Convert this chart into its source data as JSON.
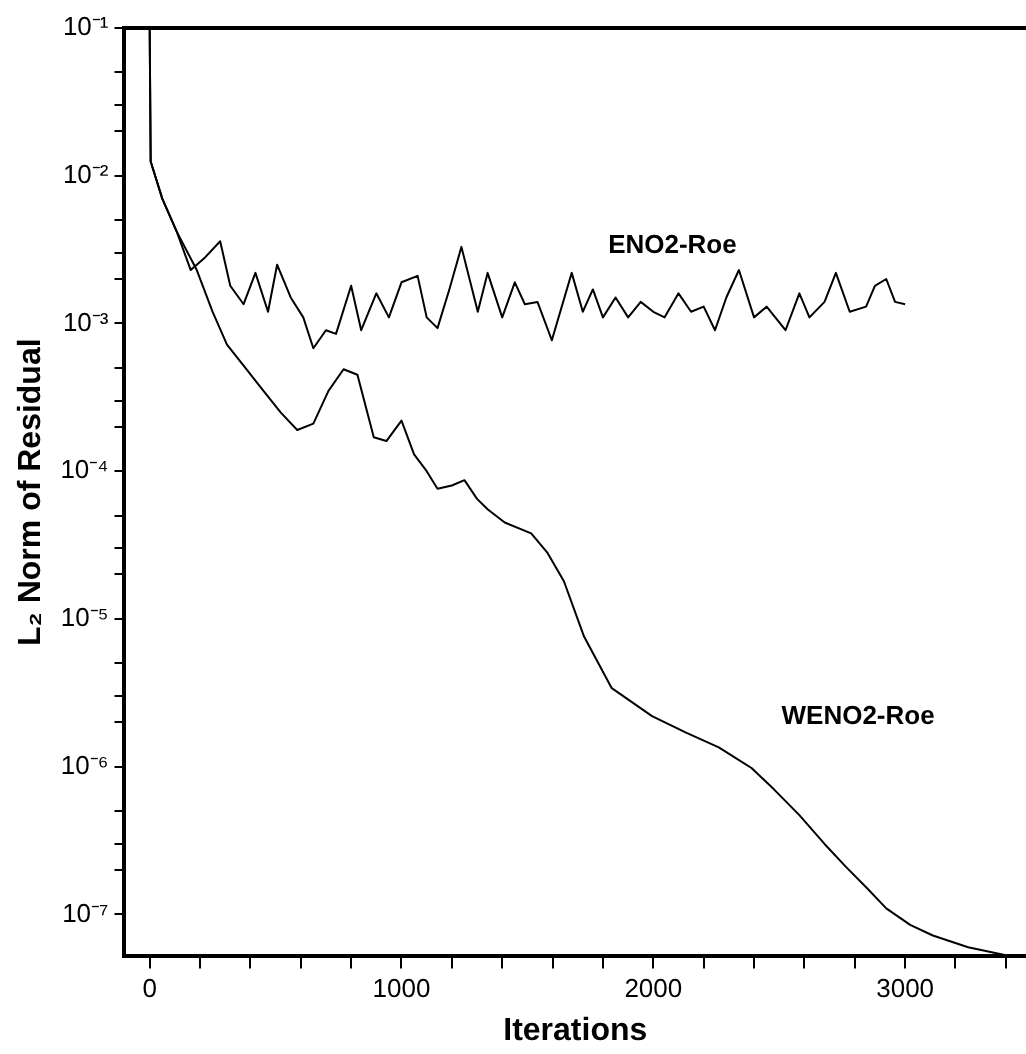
{
  "chart_data": {
    "type": "line",
    "xlabel": "Iterations",
    "ylabel": "L₂ Norm of Residual",
    "log": "y",
    "grid": false,
    "legend": false,
    "marker": "none",
    "line_style": "solid",
    "xlim": [
      -100,
      3480
    ],
    "ylim": [
      5.2e-08,
      0.1
    ],
    "xticks": [
      0,
      {
        "value": 200,
        "label": null
      },
      {
        "value": 400,
        "label": null
      },
      {
        "value": 600,
        "label": null
      },
      {
        "value": 800,
        "label": null
      },
      1000,
      {
        "value": 1200,
        "label": null
      },
      {
        "value": 1400,
        "label": null
      },
      {
        "value": 1600,
        "label": null
      },
      {
        "value": 1800,
        "label": null
      },
      2000,
      {
        "value": 2200,
        "label": null
      },
      {
        "value": 2400,
        "label": null
      },
      {
        "value": 2600,
        "label": null
      },
      {
        "value": 2800,
        "label": null
      },
      3000,
      {
        "value": 3200,
        "label": null
      },
      {
        "value": 3400,
        "label": null
      }
    ],
    "yticks": [
      {
        "value": 1e-07,
        "label": "10⁻⁷"
      },
      {
        "value": 2e-07,
        "label": null
      },
      {
        "value": 3e-07,
        "label": null
      },
      {
        "value": 5e-07,
        "label": null
      },
      {
        "value": 1e-06,
        "label": "10⁻⁶"
      },
      {
        "value": 2e-06,
        "label": null
      },
      {
        "value": 3e-06,
        "label": null
      },
      {
        "value": 5e-06,
        "label": null
      },
      {
        "value": 1e-05,
        "label": "10⁻⁵"
      },
      {
        "value": 2e-05,
        "label": null
      },
      {
        "value": 3e-05,
        "label": null
      },
      {
        "value": 5e-05,
        "label": null
      },
      {
        "value": 0.0001,
        "label": "10⁻⁴"
      },
      {
        "value": 0.0002,
        "label": null
      },
      {
        "value": 0.0003,
        "label": null
      },
      {
        "value": 0.0005,
        "label": null
      },
      {
        "value": 0.001,
        "label": "10⁻³"
      },
      {
        "value": 0.002,
        "label": null
      },
      {
        "value": 0.003,
        "label": null
      },
      {
        "value": 0.005,
        "label": null
      },
      {
        "value": 0.01,
        "label": "10⁻²"
      },
      {
        "value": 0.02,
        "label": null
      },
      {
        "value": 0.03,
        "label": null
      },
      {
        "value": 0.05,
        "label": null
      },
      {
        "value": 0.1,
        "label": "10⁻¹"
      }
    ],
    "series": [
      {
        "name": "ENO2-Roe",
        "color": "#000000",
        "x": [
          0,
          4,
          50,
          107,
          163,
          220,
          280,
          320,
          373,
          420,
          470,
          506,
          560,
          610,
          650,
          700,
          740,
          800,
          840,
          900,
          950,
          1000,
          1064,
          1100,
          1143,
          1190,
          1238,
          1303,
          1342,
          1400,
          1450,
          1490,
          1540,
          1597,
          1676,
          1720,
          1760,
          1800,
          1850,
          1900,
          1950,
          2000,
          2045,
          2100,
          2150,
          2200,
          2245,
          2290,
          2340,
          2400,
          2450,
          2525,
          2580,
          2620,
          2680,
          2725,
          2780,
          2845,
          2880,
          2925,
          2960,
          3000
        ],
        "values": [
          0.1,
          0.0125,
          0.007,
          0.0042,
          0.0023,
          0.0028,
          0.0036,
          0.0018,
          0.00135,
          0.0022,
          0.0012,
          0.0025,
          0.0015,
          0.0011,
          0.00068,
          0.0009,
          0.00085,
          0.0018,
          0.0009,
          0.0016,
          0.0011,
          0.0019,
          0.0021,
          0.0011,
          0.00093,
          0.0017,
          0.0033,
          0.0012,
          0.0022,
          0.0011,
          0.0019,
          0.00135,
          0.0014,
          0.00077,
          0.0022,
          0.0012,
          0.0017,
          0.0011,
          0.0015,
          0.0011,
          0.0014,
          0.0012,
          0.0011,
          0.0016,
          0.0012,
          0.0013,
          0.0009,
          0.0015,
          0.0023,
          0.0011,
          0.0013,
          0.0009,
          0.0016,
          0.0011,
          0.0014,
          0.0022,
          0.0012,
          0.0013,
          0.0018,
          0.002,
          0.0014,
          0.00135
        ]
      },
      {
        "name": "WENO2-Roe",
        "color": "#000000",
        "x": [
          0,
          4,
          50,
          107,
          187,
          250,
          307,
          380,
          452,
          520,
          586,
          650,
          710,
          770,
          825,
          890,
          940,
          1000,
          1050,
          1100,
          1143,
          1200,
          1250,
          1300,
          1343,
          1410,
          1515,
          1580,
          1645,
          1725,
          1835,
          1995,
          2130,
          2260,
          2390,
          2480,
          2580,
          2680,
          2765,
          2850,
          2925,
          3020,
          3110,
          3250,
          3400
        ],
        "values": [
          0.1,
          0.0125,
          0.007,
          0.0042,
          0.0023,
          0.0012,
          0.00072,
          0.0005,
          0.00035,
          0.00025,
          0.00019,
          0.00021,
          0.00035,
          0.00049,
          0.00045,
          0.00017,
          0.00016,
          0.00022,
          0.00013,
          0.0001,
          7.6e-05,
          8e-05,
          8.7e-05,
          6.5e-05,
          5.5e-05,
          4.5e-05,
          3.8e-05,
          2.8e-05,
          1.8e-05,
          7.6e-06,
          3.4e-06,
          2.2e-06,
          1.7e-06,
          1.35e-06,
          9.8e-07,
          7e-07,
          4.7e-07,
          3e-07,
          2.1e-07,
          1.5e-07,
          1.1e-07,
          8.5e-08,
          7.2e-08,
          6e-08,
          5.3e-08
        ]
      }
    ]
  }
}
